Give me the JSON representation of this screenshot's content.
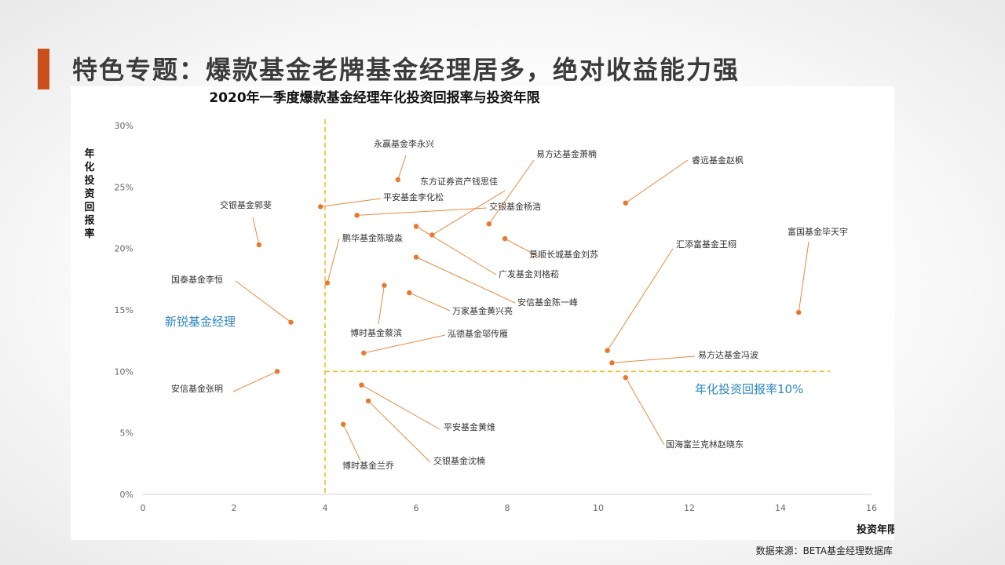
{
  "slide": {
    "title": "特色专题：爆款基金老牌基金经理居多，绝对收益能力强",
    "source": "数据来源：BETA基金经理数据库"
  },
  "colors": {
    "accent": "#c9501c",
    "point": "#e8782e",
    "leader": "#e8893f",
    "threshold": "#e8c02a",
    "region_label": "#2e86c1"
  },
  "chart_data": {
    "type": "scatter",
    "title": "2020年一季度爆款基金经理年化投资回报率与投资年限",
    "xlabel": "投资年限",
    "ylabel": "年化投资回报率",
    "xlim": [
      0,
      16
    ],
    "ylim": [
      0,
      30
    ],
    "x_ticks": [
      "0",
      "2",
      "4",
      "6",
      "8",
      "10",
      "12",
      "14",
      "16"
    ],
    "y_ticks": [
      "0%",
      "5%",
      "10%",
      "15%",
      "20%",
      "25%",
      "30%"
    ],
    "grid": false,
    "reference_lines": [
      {
        "orientation": "vertical",
        "x": 4
      },
      {
        "orientation": "horizontal",
        "y": 10
      }
    ],
    "region_labels": [
      "新锐基金经理",
      "年化投资回报率10%"
    ],
    "points": [
      {
        "name": "交银基金郭斐",
        "x": 2.55,
        "y": 20.3
      },
      {
        "name": "国泰基金李恒",
        "x": 3.25,
        "y": 14.0
      },
      {
        "name": "安信基金张明",
        "x": 2.95,
        "y": 10.0
      },
      {
        "name": "平安基金李化松",
        "x": 3.9,
        "y": 23.4
      },
      {
        "name": "鹏华基金陈璇淼",
        "x": 4.05,
        "y": 17.2
      },
      {
        "name": "永赢基金李永兴",
        "x": 5.6,
        "y": 25.6
      },
      {
        "name": "交银基金杨浩",
        "x": 4.7,
        "y": 22.7
      },
      {
        "name": "东方证券资产钱思佳",
        "x": 6.35,
        "y": 21.1
      },
      {
        "name": "易方达基金萧楠",
        "x": 7.6,
        "y": 22.0
      },
      {
        "name": "广发基金刘格菘",
        "x": 6.0,
        "y": 21.8
      },
      {
        "name": "景顺长城基金刘苏",
        "x": 7.95,
        "y": 20.8
      },
      {
        "name": "安信基金陈一峰",
        "x": 6.0,
        "y": 19.3
      },
      {
        "name": "博时基金蔡滨",
        "x": 5.3,
        "y": 17.0
      },
      {
        "name": "万家基金黄兴亮",
        "x": 5.85,
        "y": 16.4
      },
      {
        "name": "泓德基金邬传雁",
        "x": 4.85,
        "y": 11.5
      },
      {
        "name": "睿远基金赵枫",
        "x": 10.6,
        "y": 23.7
      },
      {
        "name": "汇添富基金王栩",
        "x": 10.2,
        "y": 11.7
      },
      {
        "name": "易方达基金冯波",
        "x": 10.3,
        "y": 10.7
      },
      {
        "name": "国海富兰克林赵晓东",
        "x": 10.6,
        "y": 9.5
      },
      {
        "name": "富国基金毕天宇",
        "x": 14.4,
        "y": 14.8
      },
      {
        "name": "平安基金黄维",
        "x": 4.8,
        "y": 8.9
      },
      {
        "name": "交银基金沈楠",
        "x": 4.95,
        "y": 7.6
      },
      {
        "name": "博时基金兰乔",
        "x": 4.4,
        "y": 5.7
      }
    ]
  }
}
